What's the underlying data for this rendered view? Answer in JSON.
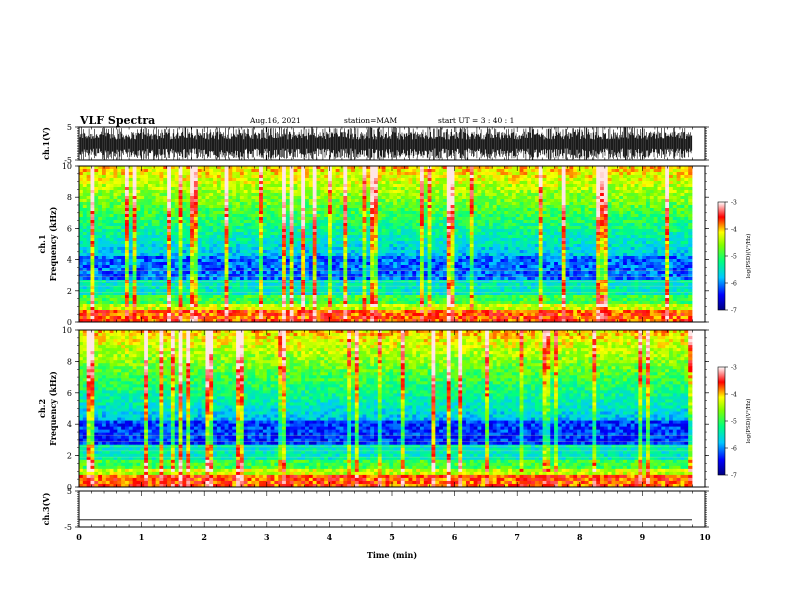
{
  "header": {
    "title": "VLF Spectra",
    "date": "Aug.16, 2021",
    "station": "station=MAM",
    "start_ut": "start  UT  =   3  : 40 : 1"
  },
  "chart_data": [
    {
      "type": "line",
      "panel": "ch1-waveform",
      "ylabel": "ch.1(V)",
      "yticks": [
        "5",
        "-5"
      ],
      "ylim": [
        -5,
        5
      ],
      "description_of_signal": "dense impulsive bipolar waveform spanning nearly full range"
    },
    {
      "type": "heatmap",
      "panel": "ch1-spectrogram",
      "ylabel_line1": "ch.1",
      "ylabel_line2": "Frequency  (kHz)",
      "yticks": [
        "0",
        "2",
        "4",
        "6",
        "8",
        "10"
      ],
      "ylim": [
        0,
        10
      ],
      "xlim": [
        0,
        10
      ],
      "colorbar": {
        "label": "log(PSD)(V²/Hz)",
        "ticks": [
          "-3",
          "-4",
          "-5",
          "-6",
          "-7"
        ],
        "range": [
          -7,
          -3
        ]
      }
    },
    {
      "type": "heatmap",
      "panel": "ch2-spectrogram",
      "ylabel_line1": "ch.2",
      "ylabel_line2": "Frequency  (kHz)",
      "yticks": [
        "0",
        "2",
        "4",
        "6",
        "8",
        "10"
      ],
      "ylim": [
        0,
        10
      ],
      "xlim": [
        0,
        10
      ],
      "colorbar": {
        "label": "log(PSD)(V²/Hz)",
        "ticks": [
          "-3",
          "-4",
          "-5",
          "-6",
          "-7"
        ],
        "range": [
          -7,
          -3
        ]
      }
    },
    {
      "type": "line",
      "panel": "ch3-waveform",
      "ylabel": "ch.3(V)",
      "yticks": [
        "5",
        "-5"
      ],
      "ylim": [
        -5,
        5
      ],
      "constant_value": -3
    }
  ],
  "xaxis": {
    "label": "Time  (min)",
    "ticks": [
      "0",
      "1",
      "2",
      "3",
      "4",
      "5",
      "6",
      "7",
      "8",
      "9",
      "10"
    ],
    "xlim": [
      0,
      10
    ]
  }
}
